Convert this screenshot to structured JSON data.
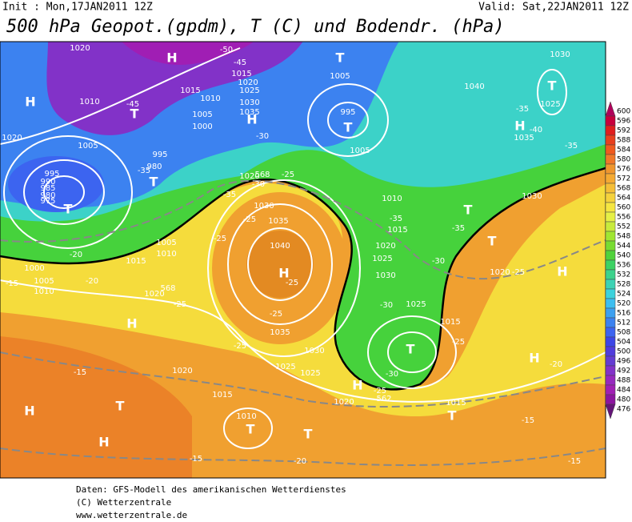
{
  "header": {
    "init": "Init : Mon,17JAN2011 12Z",
    "valid": "Valid: Sat,22JAN2011 12Z",
    "title": "500 hPa Geopot.(gpdm), T (C) und Bodendr. (hPa)"
  },
  "legend": {
    "labels": [
      "600",
      "596",
      "592",
      "588",
      "584",
      "580",
      "576",
      "572",
      "568",
      "564",
      "560",
      "556",
      "552",
      "548",
      "544",
      "540",
      "536",
      "532",
      "528",
      "524",
      "520",
      "516",
      "512",
      "508",
      "504",
      "500",
      "496",
      "492",
      "488",
      "484",
      "480",
      "476"
    ]
  },
  "map": {
    "labels": [
      "1020",
      "H",
      "-50",
      "-45",
      "1015",
      "1020",
      "1025",
      "T",
      "1005",
      "1030",
      "H",
      "1010",
      "-45",
      "T",
      "1015",
      "1010",
      "1005",
      "1000",
      "1030",
      "1035",
      "H",
      "995",
      "T",
      "1040",
      "T",
      "1025",
      "-35",
      "H",
      "-40",
      "1035",
      "-35",
      "1020",
      "1005",
      "-30",
      "1005",
      "995",
      "980",
      "-35",
      "T",
      "995",
      "990",
      "985",
      "980",
      "975",
      "T",
      "-25",
      "1020",
      "-30",
      "-35",
      "1030",
      "1010",
      "T",
      "1030",
      "-25",
      "1035",
      "-35",
      "1015",
      "-35",
      "1005",
      "1010",
      "-20",
      "-25",
      "1040",
      "1020",
      "1025",
      "-30",
      "T",
      "1015",
      "1000",
      "-15",
      "1005",
      "-20",
      "1010",
      "H",
      "1030",
      "-25",
      "1020",
      "-25",
      "1020",
      "-25",
      "H",
      "-30",
      "1025",
      "H",
      "-25",
      "1035",
      "1015",
      "-25",
      "1030",
      "T",
      "-25",
      "H",
      "-20",
      "1025",
      "1025",
      "-30",
      "-15",
      "1020",
      "H",
      "-25",
      "T",
      "1015",
      "1020",
      "1015",
      "H",
      "1010",
      "T",
      "T",
      "T",
      "-15",
      "H",
      "-15",
      "-20",
      "-15",
      "568",
      "568",
      "562"
    ]
  },
  "footer": {
    "lines": [
      "Daten: GFS-Modell des amerikanischen Wetterdienstes",
      "(C) Wetterzentrale",
      "www.wetterzentrale.de"
    ]
  }
}
